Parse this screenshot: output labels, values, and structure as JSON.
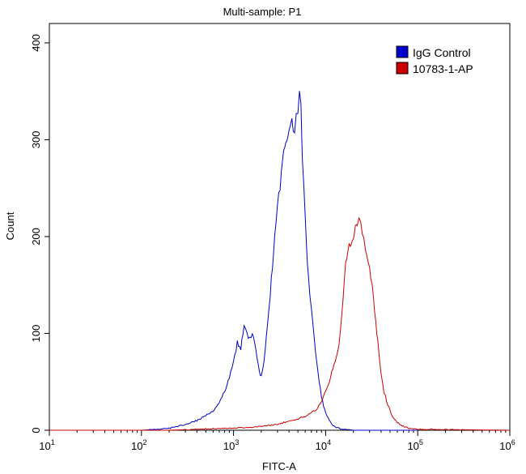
{
  "chart_data": {
    "type": "line",
    "title": "Multi-sample: P1",
    "xlabel": "FITC-A",
    "ylabel": "Count",
    "x_scale": "log10",
    "xlim": [
      10,
      1000000
    ],
    "ylim": [
      0,
      420
    ],
    "x_ticks": [
      {
        "value": 10,
        "base": "10",
        "exp": "1"
      },
      {
        "value": 100,
        "base": "10",
        "exp": "2"
      },
      {
        "value": 1000,
        "base": "10",
        "exp": "3"
      },
      {
        "value": 10000,
        "base": "10",
        "exp": "4"
      },
      {
        "value": 100000,
        "base": "10",
        "exp": "5"
      },
      {
        "value": 1000000,
        "base": "10",
        "exp": "6"
      }
    ],
    "y_ticks": [
      0,
      100,
      200,
      300,
      400
    ],
    "grid": false,
    "legend_position": "top-right",
    "series": [
      {
        "name": "IgG Control",
        "color": "#0000cc",
        "x": [
          10,
          100,
          150,
          200,
          300,
          400,
          500,
          600,
          700,
          800,
          900,
          1000,
          1100,
          1200,
          1300,
          1400,
          1500,
          1600,
          1700,
          1800,
          1900,
          2000,
          2200,
          2500,
          2800,
          3000,
          3200,
          3500,
          3800,
          4000,
          4300,
          4600,
          4800,
          5000,
          5200,
          5400,
          5500,
          5600,
          5800,
          6000,
          6200,
          6500,
          7000,
          7500,
          8000,
          8500,
          9000,
          9500,
          10000,
          11000,
          12000,
          13000,
          14000,
          15000,
          17000,
          20000,
          25000,
          30000,
          100000
        ],
        "y": [
          0,
          0,
          1,
          2,
          6,
          10,
          15,
          20,
          28,
          40,
          55,
          70,
          90,
          85,
          110,
          100,
          95,
          100,
          88,
          75,
          60,
          55,
          80,
          140,
          200,
          235,
          250,
          290,
          300,
          310,
          320,
          305,
          325,
          330,
          350,
          340,
          300,
          280,
          250,
          220,
          190,
          160,
          125,
          95,
          70,
          50,
          35,
          25,
          18,
          10,
          5,
          3,
          2,
          1,
          1,
          0,
          0,
          0,
          0
        ]
      },
      {
        "name": "10783-1-AP",
        "color": "#cc0000",
        "x": [
          10,
          200,
          400,
          700,
          1000,
          1500,
          2000,
          2500,
          3000,
          3500,
          4000,
          5000,
          6000,
          7000,
          8000,
          9000,
          10000,
          11000,
          12000,
          13000,
          14000,
          15000,
          16000,
          17000,
          18000,
          19000,
          20000,
          21000,
          22000,
          23000,
          24000,
          25000,
          26000,
          27000,
          28000,
          30000,
          32000,
          34000,
          36000,
          38000,
          40000,
          43000,
          46000,
          50000,
          55000,
          60000,
          70000,
          80000,
          100000,
          1000000
        ],
        "y": [
          0,
          0,
          1,
          2,
          2,
          3,
          4,
          5,
          6,
          8,
          9,
          12,
          14,
          18,
          22,
          30,
          40,
          50,
          65,
          75,
          90,
          120,
          160,
          180,
          190,
          195,
          200,
          208,
          215,
          218,
          212,
          205,
          195,
          190,
          180,
          165,
          150,
          125,
          100,
          80,
          60,
          40,
          30,
          20,
          12,
          8,
          4,
          2,
          1,
          0
        ]
      }
    ]
  }
}
